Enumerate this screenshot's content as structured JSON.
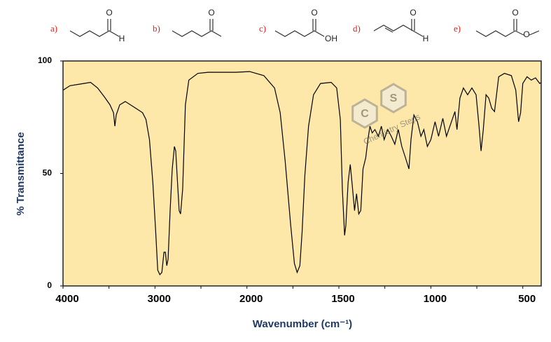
{
  "structures": [
    {
      "label": "a)",
      "atoms": [
        "O",
        "H"
      ]
    },
    {
      "label": "b)",
      "atoms": [
        "O"
      ]
    },
    {
      "label": "c)",
      "atoms": [
        "O",
        "OH"
      ]
    },
    {
      "label": "d)",
      "atoms": [
        "O",
        "H"
      ]
    },
    {
      "label": "e)",
      "atoms": [
        "O",
        "O"
      ]
    }
  ],
  "watermark": {
    "letters": [
      "C",
      "S"
    ],
    "text": "Chemistry Steps"
  },
  "chart_data": {
    "type": "line",
    "x_label": "Wavenumber (cm⁻¹)",
    "y_label": "% Transmittance",
    "xlim": [
      4000,
      400
    ],
    "ylim": [
      0,
      100
    ],
    "xticks": [
      4000,
      3000,
      2000,
      1500,
      1000,
      500
    ],
    "xminorticks": [
      3500,
      2500,
      1750,
      1250,
      750
    ],
    "yticks": [
      0,
      50,
      100
    ],
    "x_scale_change": {
      "at": 2000,
      "factor": 2
    },
    "color": "#000000",
    "background": "#fde7a9",
    "x": [
      4000,
      3925,
      3775,
      3700,
      3624,
      3549,
      3489,
      3451,
      3436,
      3421,
      3383,
      3323,
      3210,
      3135,
      3098,
      3060,
      3023,
      2992,
      2970,
      2947,
      2925,
      2902,
      2887,
      2872,
      2857,
      2835,
      2812,
      2789,
      2774,
      2759,
      2737,
      2722,
      2699,
      2669,
      2632,
      2534,
      2421,
      2120,
      1985,
      1908,
      1850,
      1819,
      1792,
      1762,
      1742,
      1727,
      1712,
      1700,
      1685,
      1665,
      1638,
      1600,
      1542,
      1512,
      1492,
      1481,
      1469,
      1462,
      1450,
      1438,
      1427,
      1415,
      1404,
      1392,
      1381,
      1369,
      1354,
      1342,
      1331,
      1319,
      1304,
      1285,
      1269,
      1254,
      1235,
      1215,
      1196,
      1177,
      1158,
      1138,
      1119,
      1108,
      1092,
      1073,
      1054,
      1038,
      1019,
      1000,
      977,
      958,
      935,
      915,
      888,
      869,
      858,
      842,
      823,
      800,
      777,
      754,
      738,
      727,
      715,
      700,
      685,
      669,
      654,
      631,
      600,
      562,
      538,
      523,
      512,
      500,
      477,
      454,
      431,
      408,
      400
    ],
    "values": [
      87,
      89,
      90,
      90.5,
      88,
      84,
      80.5,
      77,
      71,
      76,
      80.5,
      82,
      79,
      77,
      74,
      65,
      46,
      24,
      7,
      5,
      6,
      15,
      15,
      9,
      12,
      33.5,
      52,
      62,
      60,
      49,
      33.5,
      32,
      43,
      80.5,
      91.5,
      94.5,
      95,
      95,
      95.3,
      93.5,
      88,
      77,
      55.5,
      27,
      10,
      6,
      9,
      24,
      49,
      71,
      85,
      90,
      90.5,
      88,
      74,
      43,
      22.5,
      27,
      46,
      54,
      44.5,
      33.5,
      41,
      32,
      33.5,
      52,
      57,
      65,
      71,
      68,
      69.5,
      66.5,
      71,
      65,
      69.5,
      66.5,
      63,
      69.5,
      62,
      57,
      52,
      65,
      76,
      73,
      66.5,
      69.5,
      62,
      65,
      73,
      66.5,
      74.5,
      66.5,
      73,
      77.5,
      69.5,
      83.5,
      88,
      85,
      88,
      85,
      71,
      60,
      69.5,
      85,
      83.5,
      79,
      77.5,
      93,
      94.5,
      93.5,
      87,
      73,
      77,
      90,
      93,
      91.5,
      92.5,
      90,
      90.5
    ]
  }
}
